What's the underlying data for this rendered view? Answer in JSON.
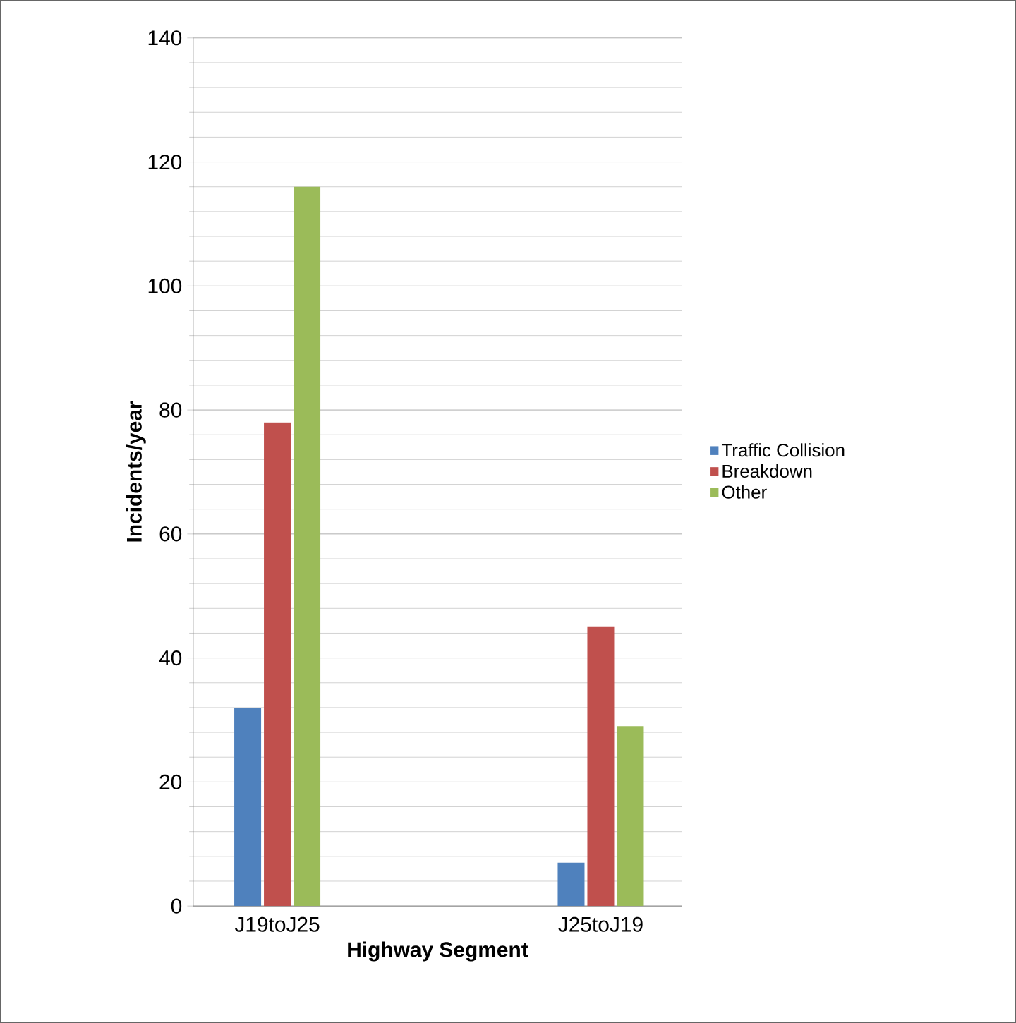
{
  "chart_data": {
    "type": "bar",
    "xlabel": "Highway Segment",
    "ylabel": "Incidents/year",
    "categories": [
      "J19toJ25",
      "J25toJ19"
    ],
    "series": [
      {
        "name": "Traffic Collision",
        "color": "#4f81bd",
        "values": [
          32,
          7
        ]
      },
      {
        "name": "Breakdown",
        "color": "#c0504d",
        "values": [
          78,
          45
        ]
      },
      {
        "name": "Other",
        "color": "#9bbb59",
        "values": [
          116,
          29
        ]
      }
    ],
    "ylim": [
      0,
      140
    ],
    "yticks": [
      0,
      20,
      40,
      60,
      80,
      100,
      120,
      140
    ],
    "grid": "y",
    "legend": "right"
  }
}
